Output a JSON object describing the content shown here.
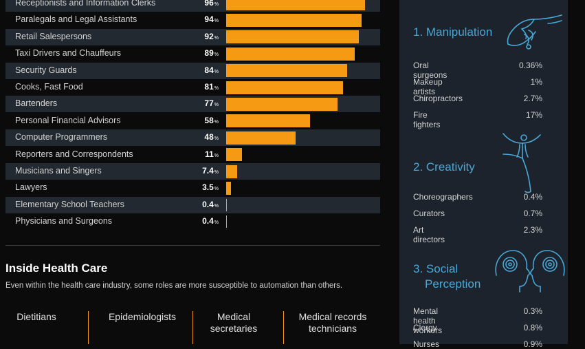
{
  "chart_data": {
    "type": "bar",
    "orientation": "horizontal",
    "categories": [
      "Receptionists and Information Clerks",
      "Paralegals and Legal Assistants",
      "Retail Salespersons",
      "Taxi Drivers and Chauffeurs",
      "Security Guards",
      "Cooks, Fast Food",
      "Bartenders",
      "Personal Financial Advisors",
      "Computer Programmers",
      "Reporters and Correspondents",
      "Musicians and Singers",
      "Lawyers",
      "Elementary School Teachers",
      "Physicians and Surgeons"
    ],
    "values": [
      96,
      94,
      92,
      89,
      84,
      81,
      77,
      58,
      48,
      11,
      7.4,
      3.5,
      0.4,
      0.4
    ],
    "value_labels": [
      "96",
      "94",
      "92",
      "89",
      "84",
      "81",
      "77",
      "58",
      "48",
      "11",
      "7.4",
      "3.5",
      "0.4",
      "0.4"
    ],
    "unit": "%",
    "xlim": [
      0,
      100
    ],
    "bar_color": "#f59a12",
    "stripe_color": "#232931"
  },
  "health_care": {
    "title": "Inside Health Care",
    "subtitle": "Even within the health care industry, some roles are more susceptible to automation than others.",
    "columns": [
      {
        "label": "Dietitians"
      },
      {
        "label": "Epidemiologists"
      },
      {
        "label": "Medical secretaries"
      },
      {
        "label": "Medical records technicians"
      }
    ]
  },
  "sidebar": {
    "accent_color": "#4aa8d8",
    "sections": [
      {
        "title": "1. Manipulation",
        "icon": "hand-icon",
        "items": [
          {
            "name": "Oral surgeons",
            "value": "0.36%"
          },
          {
            "name": "Makeup artists",
            "value": "1%"
          },
          {
            "name": "Chiropractors",
            "value": "2.7%"
          },
          {
            "name": "Fire fighters",
            "value": "17%"
          }
        ]
      },
      {
        "title": "2. Creativity",
        "icon": "dancer-icon",
        "items": [
          {
            "name": "Choreographers",
            "value": "0.4%"
          },
          {
            "name": "Curators",
            "value": "0.7%"
          },
          {
            "name": "Art directors",
            "value": "2.3%"
          }
        ]
      },
      {
        "title_line1": "3. Social",
        "title_line2": "Perception",
        "icon": "heads-icon",
        "items": [
          {
            "name": "Mental health workers",
            "value": "0.3%"
          },
          {
            "name": "Clergy",
            "value": "0.8%"
          },
          {
            "name": "Nurses",
            "value": "0.9%"
          }
        ]
      }
    ]
  }
}
